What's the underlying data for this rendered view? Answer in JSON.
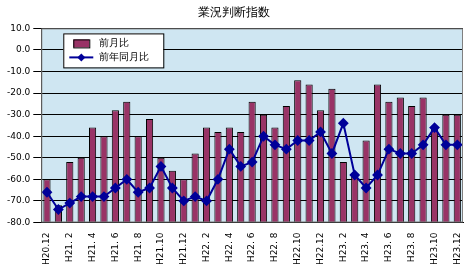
{
  "chart_data": {
    "type": "bar",
    "title": "業況判断指数",
    "categories": [
      "H20.12",
      null,
      "H21. 2",
      null,
      "H21. 4",
      null,
      "H21. 6",
      null,
      "H21. 8",
      null,
      "H21.10",
      null,
      "H21.12",
      null,
      "H22. 2",
      null,
      "H22. 4",
      null,
      "H22. 6",
      null,
      "H22. 8",
      null,
      "H22.10",
      null,
      "H22.12",
      null,
      "H23. 2",
      null,
      "H23. 4",
      null,
      "H23. 6",
      null,
      "H23. 8",
      null,
      "H23.10",
      null,
      "H23.12"
    ],
    "series": [
      {
        "name": "前月比",
        "type": "bar",
        "color": "#993366",
        "values": [
          -60,
          -72,
          -52,
          -50,
          -36,
          -40,
          -28,
          -24,
          -40,
          -32,
          -50,
          -56,
          -60,
          -48,
          -36,
          -38,
          -36,
          -38,
          -24,
          -30,
          -36,
          -26,
          -14,
          -16,
          -28,
          -18,
          -52,
          -58,
          -42,
          -16,
          -24,
          -22,
          -26,
          -22,
          -36,
          -30,
          -30
        ]
      },
      {
        "name": "前年同月比",
        "type": "line",
        "color": "#000099",
        "marker": "diamond",
        "values": [
          -66,
          -74,
          -71,
          -68,
          -68,
          -68,
          -64,
          -60,
          -66,
          -64,
          -54,
          -64,
          -70,
          -68,
          -70,
          -60,
          -46,
          -54,
          -52,
          -40,
          -44,
          -46,
          -42,
          -42,
          -38,
          -48,
          -34,
          -58,
          -64,
          -58,
          -46,
          -48,
          -48,
          -44,
          -36,
          -44,
          -44
        ]
      }
    ],
    "ylim": [
      -80,
      10
    ],
    "yticks": [
      {
        "value": -80,
        "label": "-80.0"
      },
      {
        "value": -70,
        "label": "-70.0"
      },
      {
        "value": -60,
        "label": "-60.0"
      },
      {
        "value": -50,
        "label": "-50.0"
      },
      {
        "value": -40,
        "label": "-40.0"
      },
      {
        "value": -30,
        "label": "-30.0"
      },
      {
        "value": -20,
        "label": "-20.0"
      },
      {
        "value": -10,
        "label": "-10.0"
      },
      {
        "value": 0,
        "label": "0.0"
      },
      {
        "value": 10,
        "label": "10.0"
      }
    ],
    "grid": true,
    "legend": "upper left"
  }
}
